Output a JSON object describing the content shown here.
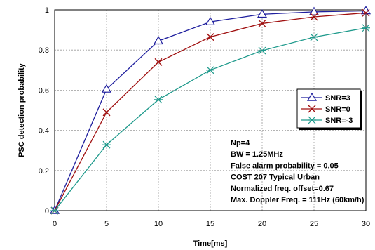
{
  "chart_data": {
    "type": "line",
    "xlabel": "Time[ms]",
    "ylabel": "PSC detection probability",
    "xlim": [
      0,
      30
    ],
    "ylim": [
      0,
      1
    ],
    "x_ticks": [
      "0",
      "5",
      "10",
      "15",
      "20",
      "25",
      "30"
    ],
    "y_ticks": [
      "0",
      "0.2",
      "0.4",
      "0.6",
      "0.8",
      "1"
    ],
    "grid": true,
    "legend_position": "right",
    "x": [
      0,
      5,
      10,
      15,
      20,
      25,
      30
    ],
    "series": [
      {
        "name": "SNR=3",
        "color": "#1f1f9e",
        "marker": "triangle",
        "values": [
          0,
          0.605,
          0.845,
          0.94,
          0.978,
          0.99,
          0.995
        ]
      },
      {
        "name": "SNR=0",
        "color": "#a01010",
        "marker": "x",
        "values": [
          0,
          0.49,
          0.74,
          0.865,
          0.932,
          0.965,
          0.985
        ]
      },
      {
        "name": "SNR=-3",
        "color": "#1f9a8c",
        "marker": "asterisk",
        "values": [
          0,
          0.328,
          0.553,
          0.7,
          0.797,
          0.864,
          0.91
        ]
      }
    ],
    "annotations": [
      "Np=4",
      "BW = 1.25MHz",
      "False alarm probability = 0.05",
      "COST 207 Typical Urban",
      "Normalized freq. offset=0.67",
      "Max. Doppler Freq. = 111Hz (60km/h)"
    ]
  }
}
